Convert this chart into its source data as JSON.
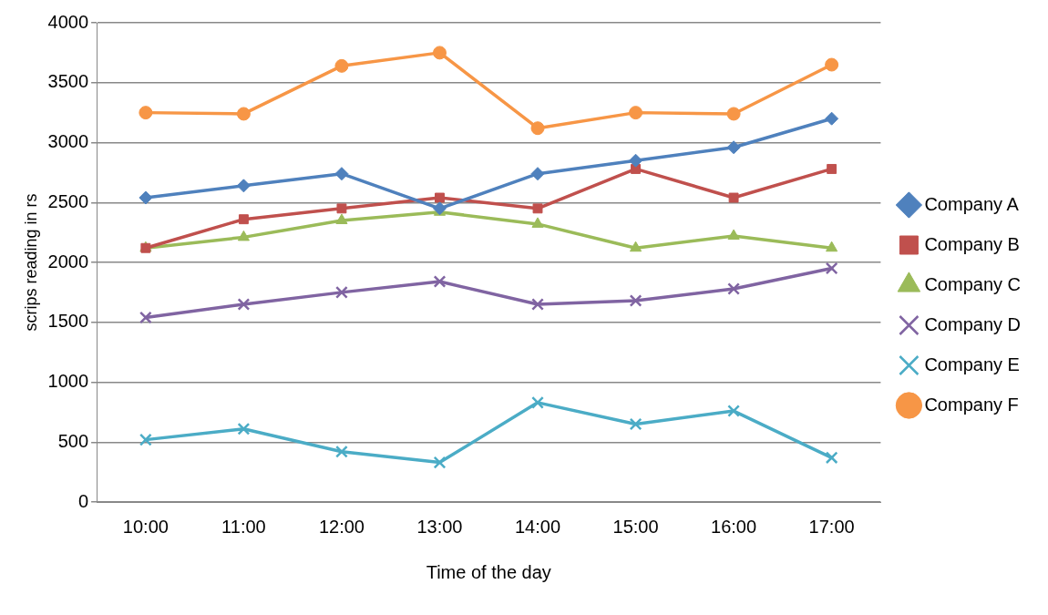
{
  "chart_data": {
    "type": "line",
    "xlabel": "Time of the day",
    "ylabel": "scrips reading in rs",
    "categories": [
      "10:00",
      "11:00",
      "12:00",
      "13:00",
      "14:00",
      "15:00",
      "16:00",
      "17:00"
    ],
    "ylim": [
      0,
      4000
    ],
    "yticks": [
      0,
      500,
      1000,
      1500,
      2000,
      2500,
      3000,
      3500,
      4000
    ],
    "grid": "y",
    "legend": "right",
    "line_style": "solid",
    "series": [
      {
        "name": "Company A",
        "color": "#4f81bd",
        "marker": "diamond",
        "values": [
          2540,
          2640,
          2740,
          2450,
          2740,
          2850,
          2960,
          3200
        ]
      },
      {
        "name": "Company B",
        "color": "#c0504d",
        "marker": "square",
        "values": [
          2120,
          2360,
          2450,
          2540,
          2450,
          2780,
          2540,
          2780
        ]
      },
      {
        "name": "Company C",
        "color": "#9bbb59",
        "marker": "triangle",
        "values": [
          2120,
          2210,
          2350,
          2420,
          2320,
          2120,
          2220,
          2120
        ]
      },
      {
        "name": "Company D",
        "color": "#8064a2",
        "marker": "cross",
        "values": [
          1540,
          1650,
          1750,
          1840,
          1650,
          1680,
          1780,
          1950
        ]
      },
      {
        "name": "Company E",
        "color": "#4bacc6",
        "marker": "cross",
        "values": [
          520,
          610,
          420,
          330,
          830,
          650,
          760,
          370
        ]
      },
      {
        "name": "Company F",
        "color": "#f79646",
        "marker": "circle",
        "values": [
          3250,
          3240,
          3640,
          3750,
          3120,
          3250,
          3240,
          3650
        ]
      }
    ]
  }
}
